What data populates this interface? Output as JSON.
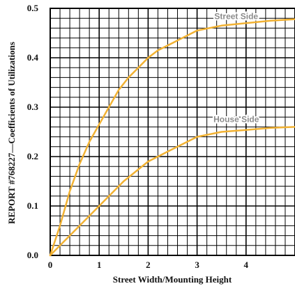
{
  "chart_data": {
    "type": "line",
    "xlabel": "Street Width/Mounting Height",
    "ylabel": "REPORT #768227—Coefficients of Utilizations",
    "xlim": [
      0,
      5
    ],
    "ylim": [
      0,
      0.5
    ],
    "x_ticks": [
      "0",
      "1",
      "2",
      "3",
      "4"
    ],
    "y_ticks": [
      "0.0",
      "0.1",
      "0.2",
      "0.3",
      "0.4",
      "0.5"
    ],
    "grid": true,
    "colors": {
      "line": "#f2b233",
      "label": "#8c8c8c",
      "grid": "#000000"
    },
    "series": [
      {
        "name": "Street Side",
        "x": [
          0,
          0.2,
          0.4,
          0.6,
          0.8,
          1.0,
          1.2,
          1.4,
          1.6,
          1.8,
          2.0,
          2.2,
          2.5,
          3.0,
          3.5,
          4.0,
          4.5,
          5.0
        ],
        "y": [
          0,
          0.06,
          0.13,
          0.185,
          0.23,
          0.265,
          0.3,
          0.335,
          0.36,
          0.38,
          0.4,
          0.415,
          0.43,
          0.455,
          0.465,
          0.47,
          0.475,
          0.478
        ]
      },
      {
        "name": "House Side",
        "x": [
          0,
          0.2,
          0.5,
          1.0,
          1.5,
          2.0,
          2.5,
          3.0,
          3.5,
          4.0,
          4.5,
          5.0
        ],
        "y": [
          0,
          0.02,
          0.05,
          0.1,
          0.15,
          0.19,
          0.215,
          0.24,
          0.25,
          0.254,
          0.258,
          0.26
        ]
      }
    ]
  }
}
